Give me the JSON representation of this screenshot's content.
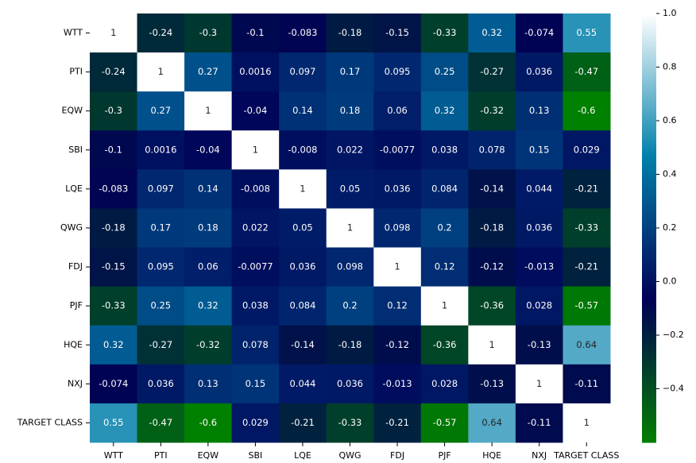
{
  "chart_data": {
    "type": "heatmap",
    "colormap": "ocean",
    "x_categories": [
      "WTT",
      "PTI",
      "EQW",
      "SBI",
      "LQE",
      "QWG",
      "FDJ",
      "PJF",
      "HQE",
      "NXJ",
      "TARGET CLASS"
    ],
    "y_categories": [
      "WTT",
      "PTI",
      "EQW",
      "SBI",
      "LQE",
      "QWG",
      "FDJ",
      "PJF",
      "HQE",
      "NXJ",
      "TARGET CLASS"
    ],
    "values": [
      [
        1,
        -0.24,
        -0.3,
        -0.1,
        -0.083,
        -0.18,
        -0.15,
        -0.33,
        0.32,
        -0.074,
        0.55
      ],
      [
        -0.24,
        1,
        0.27,
        0.0016,
        0.097,
        0.17,
        0.095,
        0.25,
        -0.27,
        0.036,
        -0.47
      ],
      [
        -0.3,
        0.27,
        1,
        -0.04,
        0.14,
        0.18,
        0.06,
        0.32,
        -0.32,
        0.13,
        -0.6
      ],
      [
        -0.1,
        0.0016,
        -0.04,
        1,
        -0.008,
        0.022,
        -0.0077,
        0.038,
        0.078,
        0.15,
        0.029
      ],
      [
        -0.083,
        0.097,
        0.14,
        -0.008,
        1,
        0.05,
        0.036,
        0.084,
        -0.14,
        0.044,
        -0.21
      ],
      [
        -0.18,
        0.17,
        0.18,
        0.022,
        0.05,
        1,
        0.098,
        0.2,
        -0.18,
        0.036,
        -0.33
      ],
      [
        -0.15,
        0.095,
        0.06,
        -0.0077,
        0.036,
        0.098,
        1,
        0.12,
        -0.12,
        -0.013,
        -0.21
      ],
      [
        -0.33,
        0.25,
        0.32,
        0.038,
        0.084,
        0.2,
        0.12,
        1,
        -0.36,
        0.028,
        -0.57
      ],
      [
        0.32,
        -0.27,
        -0.32,
        0.078,
        -0.14,
        -0.18,
        -0.12,
        -0.36,
        1,
        -0.13,
        0.64
      ],
      [
        -0.074,
        0.036,
        0.13,
        0.15,
        0.044,
        0.036,
        -0.013,
        0.028,
        -0.13,
        1,
        -0.11
      ],
      [
        0.55,
        -0.47,
        -0.6,
        0.029,
        -0.21,
        -0.33,
        -0.21,
        -0.57,
        0.64,
        -0.11,
        1
      ]
    ],
    "clim": [
      -0.6,
      1
    ],
    "cticks": [
      {
        "value": -0.4,
        "label": "−0.4"
      },
      {
        "value": -0.2,
        "label": "−0.2"
      },
      {
        "value": 0,
        "label": "0.0"
      },
      0.2,
      0.4,
      0.6,
      0.8,
      {
        "value": 1,
        "label": "1.0"
      }
    ]
  }
}
